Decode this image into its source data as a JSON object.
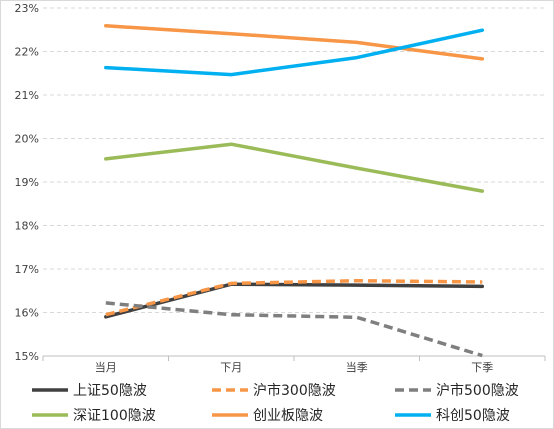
{
  "chart_data": {
    "type": "line",
    "categories": [
      "当月",
      "下月",
      "当季",
      "下季"
    ],
    "ylim": [
      0.15,
      0.23
    ],
    "yticks": [
      "15%",
      "16%",
      "17%",
      "18%",
      "19%",
      "20%",
      "21%",
      "22%",
      "23%"
    ],
    "grid": true,
    "legend_position": "bottom",
    "series": [
      {
        "name": "上证50隐波",
        "values": [
          0.159,
          0.1665,
          0.1663,
          0.166
        ],
        "color": "#404040",
        "dash": "solid"
      },
      {
        "name": "沪市300隐波",
        "values": [
          0.1595,
          0.1667,
          0.1673,
          0.167
        ],
        "color": "#f79646",
        "dash": "dashed"
      },
      {
        "name": "沪市500隐波",
        "values": [
          0.1622,
          0.1595,
          0.1589,
          0.1501
        ],
        "color": "#7f7f7f",
        "dash": "dashed"
      },
      {
        "name": "深证100隐波",
        "values": [
          0.1953,
          0.1987,
          0.1932,
          0.1879
        ],
        "color": "#9bbb59",
        "dash": "solid"
      },
      {
        "name": "创业板隐波",
        "values": [
          0.2259,
          0.2241,
          0.2221,
          0.2183
        ],
        "color": "#f79646",
        "dash": "solid"
      },
      {
        "name": "科创50隐波",
        "values": [
          0.2163,
          0.2147,
          0.2186,
          0.2249
        ],
        "color": "#00b0f0",
        "dash": "solid"
      }
    ]
  }
}
